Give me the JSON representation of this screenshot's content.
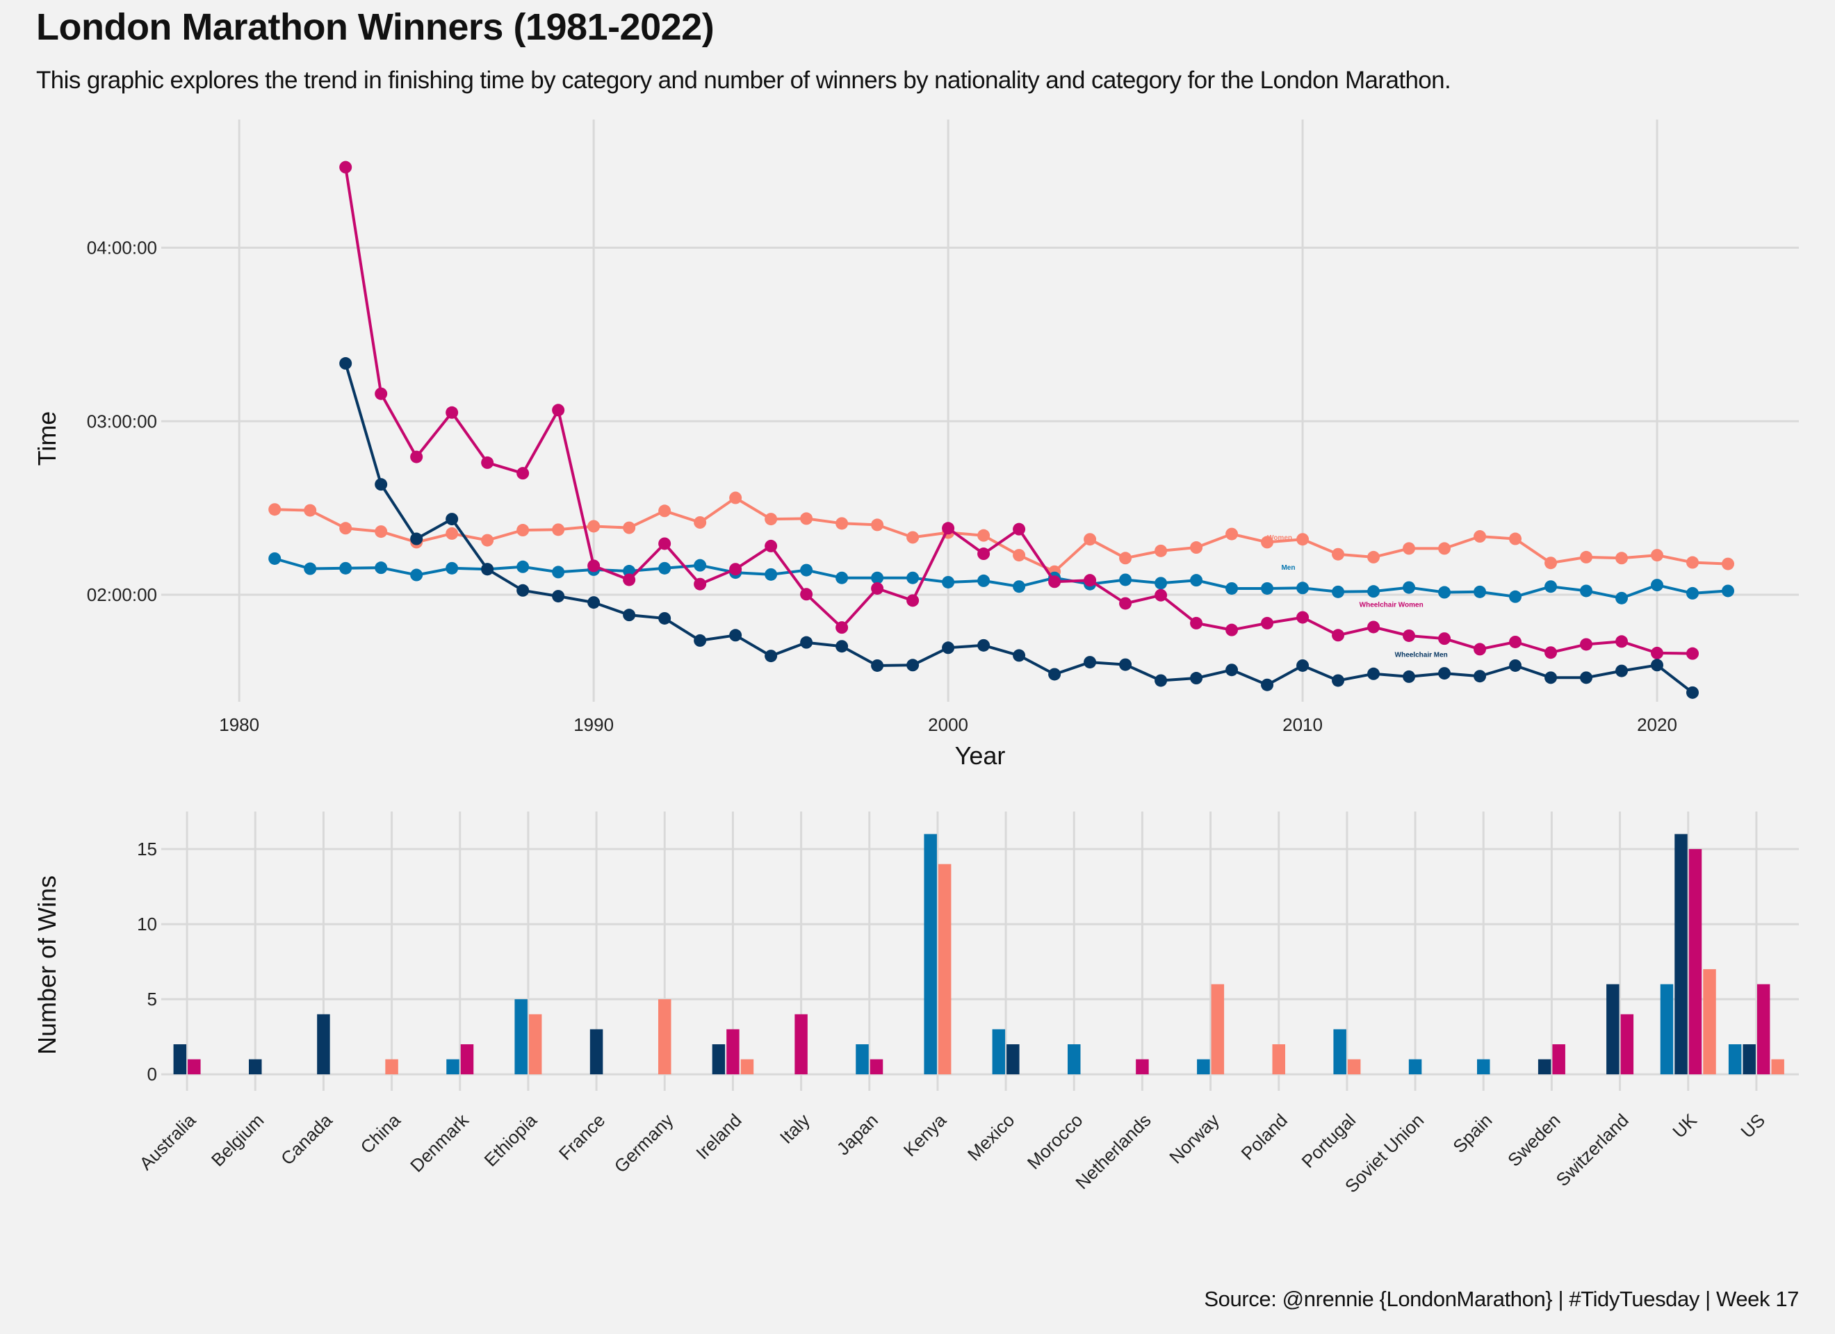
{
  "title": "London Marathon Winners (1981-2022)",
  "subtitle": "This graphic explores the trend in finishing time by category and number of winners by nationality and category for the London Marathon.",
  "caption": "Source: @nrennie {LondonMarathon} | #TidyTuesday | Week 17",
  "colors": {
    "background": "#f2f2f2",
    "grid": "#d9d9d9",
    "men": "#0575af",
    "women": "#f9826f",
    "wheelchair_men": "#073763",
    "wheelchair_women": "#c5076e"
  },
  "chart_data": [
    {
      "type": "line",
      "xlabel": "Year",
      "ylabel": "Time",
      "xlim": [
        1977.8,
        2024
      ],
      "ylim": [
        4980,
        17060
      ],
      "x_ticks": [
        1980,
        1990,
        2000,
        2010,
        2020
      ],
      "y_ticks": [
        {
          "value": 7200,
          "label": "02:00:00"
        },
        {
          "value": 10800,
          "label": "03:00:00"
        },
        {
          "value": 14400,
          "label": "04:00:00"
        }
      ],
      "grid": true,
      "series": [
        {
          "key": "women",
          "name": "Women",
          "color": "#f9826f",
          "label_at": [
            2009,
            8340
          ],
          "points": [
            [
              1981,
              8970
            ],
            [
              1982,
              8950
            ],
            [
              1983,
              8580
            ],
            [
              1984,
              8510
            ],
            [
              1985,
              8290
            ],
            [
              1986,
              8470
            ],
            [
              1987,
              8330
            ],
            [
              1988,
              8540
            ],
            [
              1989,
              8550
            ],
            [
              1990,
              8620
            ],
            [
              1991,
              8590
            ],
            [
              1992,
              8940
            ],
            [
              1993,
              8700
            ],
            [
              1994,
              9210
            ],
            [
              1995,
              8770
            ],
            [
              1996,
              8780
            ],
            [
              1997,
              8680
            ],
            [
              1998,
              8650
            ],
            [
              1999,
              8390
            ],
            [
              2000,
              8490
            ],
            [
              2001,
              8430
            ],
            [
              2002,
              8020
            ],
            [
              2003,
              7680
            ],
            [
              2004,
              8350
            ],
            [
              2005,
              7960
            ],
            [
              2006,
              8110
            ],
            [
              2007,
              8180
            ],
            [
              2008,
              8460
            ],
            [
              2009,
              8290
            ],
            [
              2010,
              8350
            ],
            [
              2011,
              8040
            ],
            [
              2012,
              7980
            ],
            [
              2013,
              8160
            ],
            [
              2014,
              8160
            ],
            [
              2015,
              8410
            ],
            [
              2016,
              8360
            ],
            [
              2017,
              7860
            ],
            [
              2018,
              7980
            ],
            [
              2019,
              7960
            ],
            [
              2020,
              8020
            ],
            [
              2021,
              7870
            ],
            [
              2022,
              7840
            ]
          ]
        },
        {
          "key": "men",
          "name": "Men",
          "color": "#0575af",
          "label_at": [
            2009.4,
            7720
          ],
          "points": [
            [
              1981,
              7950
            ],
            [
              1982,
              7740
            ],
            [
              1983,
              7750
            ],
            [
              1984,
              7760
            ],
            [
              1985,
              7610
            ],
            [
              1986,
              7750
            ],
            [
              1987,
              7730
            ],
            [
              1988,
              7780
            ],
            [
              1989,
              7670
            ],
            [
              1990,
              7720
            ],
            [
              1991,
              7690
            ],
            [
              1992,
              7750
            ],
            [
              1993,
              7810
            ],
            [
              1994,
              7660
            ],
            [
              1995,
              7620
            ],
            [
              1996,
              7710
            ],
            [
              1997,
              7550
            ],
            [
              1998,
              7550
            ],
            [
              1999,
              7550
            ],
            [
              2000,
              7460
            ],
            [
              2001,
              7490
            ],
            [
              2002,
              7370
            ],
            [
              2003,
              7550
            ],
            [
              2004,
              7420
            ],
            [
              2005,
              7510
            ],
            [
              2006,
              7440
            ],
            [
              2007,
              7500
            ],
            [
              2008,
              7330
            ],
            [
              2009,
              7330
            ],
            [
              2010,
              7340
            ],
            [
              2011,
              7260
            ],
            [
              2012,
              7270
            ],
            [
              2013,
              7350
            ],
            [
              2014,
              7250
            ],
            [
              2015,
              7260
            ],
            [
              2016,
              7160
            ],
            [
              2017,
              7370
            ],
            [
              2018,
              7280
            ],
            [
              2019,
              7130
            ],
            [
              2020,
              7400
            ],
            [
              2021,
              7230
            ],
            [
              2022,
              7280
            ]
          ]
        },
        {
          "key": "wheelchair_women",
          "name": "Wheelchair Women",
          "color": "#c5076e",
          "label_at": [
            2011.6,
            6950
          ],
          "points": [
            [
              1983,
              16070
            ],
            [
              1984,
              11370
            ],
            [
              1985,
              10060
            ],
            [
              1986,
              10980
            ],
            [
              1987,
              9940
            ],
            [
              1988,
              9720
            ],
            [
              1989,
              11030
            ],
            [
              1990,
              7800
            ],
            [
              1991,
              7510
            ],
            [
              1992,
              8260
            ],
            [
              1993,
              7420
            ],
            [
              1994,
              7730
            ],
            [
              1995,
              8210
            ],
            [
              1996,
              7210
            ],
            [
              1997,
              6520
            ],
            [
              1998,
              7330
            ],
            [
              1999,
              7080
            ],
            [
              2000,
              8580
            ],
            [
              2001,
              8050
            ],
            [
              2002,
              8560
            ],
            [
              2003,
              7470
            ],
            [
              2004,
              7500
            ],
            [
              2005,
              7020
            ],
            [
              2006,
              7190
            ],
            [
              2007,
              6610
            ],
            [
              2008,
              6470
            ],
            [
              2009,
              6610
            ],
            [
              2010,
              6730
            ],
            [
              2011,
              6360
            ],
            [
              2012,
              6530
            ],
            [
              2013,
              6350
            ],
            [
              2014,
              6290
            ],
            [
              2015,
              6070
            ],
            [
              2016,
              6220
            ],
            [
              2017,
              6000
            ],
            [
              2018,
              6170
            ],
            [
              2019,
              6230
            ],
            [
              2020,
              5990
            ],
            [
              2021,
              5980
            ]
          ]
        },
        {
          "key": "wheelchair_men",
          "name": "Wheelchair Men",
          "color": "#073763",
          "label_at": [
            2012.6,
            5910
          ],
          "points": [
            [
              1983,
              12000
            ],
            [
              1984,
              9490
            ],
            [
              1985,
              8360
            ],
            [
              1986,
              8770
            ],
            [
              1987,
              7730
            ],
            [
              1988,
              7290
            ],
            [
              1989,
              7170
            ],
            [
              1990,
              7040
            ],
            [
              1991,
              6780
            ],
            [
              1992,
              6710
            ],
            [
              1993,
              6250
            ],
            [
              1994,
              6360
            ],
            [
              1995,
              5930
            ],
            [
              1996,
              6210
            ],
            [
              1997,
              6130
            ],
            [
              1998,
              5730
            ],
            [
              1999,
              5740
            ],
            [
              2000,
              6100
            ],
            [
              2001,
              6150
            ],
            [
              2002,
              5940
            ],
            [
              2003,
              5550
            ],
            [
              2004,
              5800
            ],
            [
              2005,
              5750
            ],
            [
              2006,
              5420
            ],
            [
              2007,
              5470
            ],
            [
              2008,
              5640
            ],
            [
              2009,
              5330
            ],
            [
              2010,
              5730
            ],
            [
              2011,
              5420
            ],
            [
              2012,
              5560
            ],
            [
              2013,
              5500
            ],
            [
              2014,
              5570
            ],
            [
              2015,
              5510
            ],
            [
              2016,
              5730
            ],
            [
              2017,
              5480
            ],
            [
              2018,
              5480
            ],
            [
              2019,
              5620
            ],
            [
              2020,
              5740
            ],
            [
              2021,
              5170
            ]
          ]
        }
      ]
    },
    {
      "type": "bar",
      "xlabel": "",
      "ylabel": "Number of Wins",
      "ylim": [
        -1.1,
        17.5
      ],
      "y_ticks": [
        0,
        5,
        10,
        15
      ],
      "grid": true,
      "bar_groups": [
        "men",
        "wheelchair_men",
        "wheelchair_women",
        "women"
      ],
      "categories": [
        "Australia",
        "Belgium",
        "Canada",
        "China",
        "Denmark",
        "Ethiopia",
        "France",
        "Germany",
        "Ireland",
        "Italy",
        "Japan",
        "Kenya",
        "Mexico",
        "Morocco",
        "Netherlands",
        "Norway",
        "Poland",
        "Portugal",
        "Soviet Union",
        "Spain",
        "Sweden",
        "Switzerland",
        "UK",
        "US"
      ],
      "series": [
        {
          "key": "men",
          "color": "#0575af",
          "values": [
            0,
            0,
            0,
            0,
            1,
            5,
            0,
            0,
            0,
            0,
            2,
            16,
            3,
            2,
            0,
            1,
            0,
            3,
            1,
            1,
            0,
            0,
            6,
            2
          ]
        },
        {
          "key": "wheelchair_men",
          "color": "#073763",
          "values": [
            2,
            1,
            4,
            0,
            0,
            0,
            3,
            0,
            2,
            0,
            0,
            0,
            2,
            0,
            0,
            0,
            0,
            0,
            0,
            0,
            1,
            6,
            16,
            2
          ]
        },
        {
          "key": "wheelchair_women",
          "color": "#c5076e",
          "values": [
            1,
            0,
            0,
            0,
            2,
            0,
            0,
            0,
            3,
            4,
            1,
            0,
            0,
            0,
            1,
            0,
            0,
            0,
            0,
            0,
            2,
            4,
            15,
            6
          ]
        },
        {
          "key": "women",
          "color": "#f9826f",
          "values": [
            0,
            0,
            0,
            1,
            0,
            4,
            0,
            5,
            1,
            0,
            0,
            14,
            0,
            0,
            0,
            6,
            2,
            1,
            0,
            0,
            0,
            0,
            7,
            1
          ]
        }
      ]
    }
  ]
}
